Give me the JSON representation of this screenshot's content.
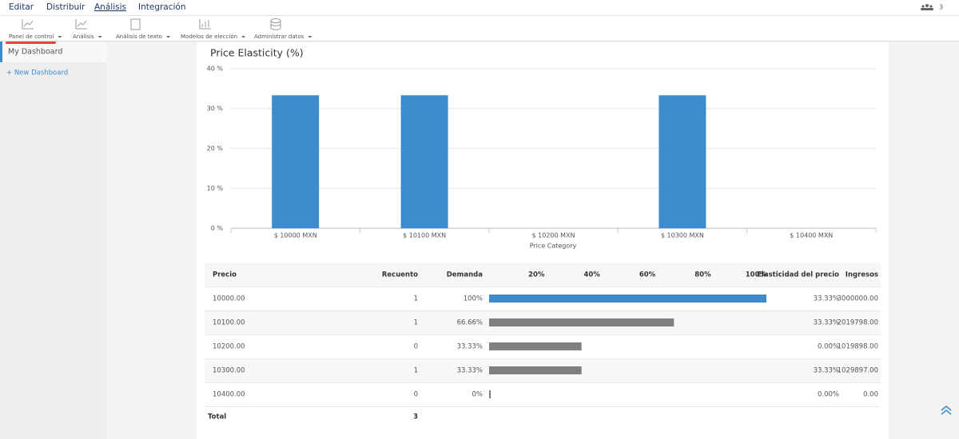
{
  "nav": {
    "items": [
      "Editar",
      "Distribuir",
      "Análisis",
      "Integración"
    ],
    "active": 2,
    "user_count": "3"
  },
  "toolbar": {
    "items": [
      "Panel de control",
      "Análisis",
      "Análisis de texto",
      "Modelos de elección",
      "Administrar datos"
    ]
  },
  "sidebar": {
    "items": [
      "My Dashboard",
      "+ New Dashboard"
    ]
  },
  "chart_data": {
    "type": "bar",
    "title": "Price Elasticity (%)",
    "categories": [
      "$ 10000 MXN",
      "$ 10100 MXN",
      "$ 10200 MXN",
      "$ 10300 MXN",
      "$ 10400 MXN"
    ],
    "values": [
      33.33,
      33.33,
      0,
      33.33,
      0
    ],
    "color": "#3d8bcd",
    "x_label": "Price Category",
    "ylim": [
      0,
      40
    ],
    "yticks": [
      {
        "value": 0,
        "label": "0 %"
      },
      {
        "value": 10,
        "label": "10 %"
      },
      {
        "value": 20,
        "label": "20 %"
      },
      {
        "value": 30,
        "label": "30 %"
      },
      {
        "value": 40,
        "label": "40 %"
      }
    ],
    "grid": true
  },
  "table": {
    "headers": [
      "Precio",
      "Recuento",
      "Demanda",
      "Elasticidad del precio",
      "Ingresos"
    ],
    "demand_xlim": [
      0,
      100
    ],
    "demand_ticks": [
      {
        "value": 20,
        "label": "20%"
      },
      {
        "value": 40,
        "label": "40%"
      },
      {
        "value": 60,
        "label": "60%"
      },
      {
        "value": 80,
        "label": "80%"
      },
      {
        "value": 100,
        "label": "100%"
      }
    ],
    "prices": [
      "10000.00",
      "10100.00",
      "10200.00",
      "10300.00",
      "10400.00"
    ],
    "counts": [
      1,
      1,
      0,
      1,
      0
    ],
    "demand": [
      100,
      66.66,
      33.33,
      33.33,
      0
    ],
    "demand_labels": [
      "100%",
      "66.66%",
      "33.33%",
      "33.33%",
      "0%"
    ],
    "bar_colors": [
      "#3d8bcd",
      "#7f7f7f",
      "#7f7f7f",
      "#7f7f7f",
      "#7f7f7f"
    ],
    "elasticity": [
      "33.33%",
      "33.33%",
      "0.00%",
      "33.33%",
      "0.00%"
    ],
    "revenue": [
      "3000000.00",
      "2019798.00",
      "1019898.00",
      "1029897.00",
      "0.00"
    ],
    "total_label": "Total",
    "total_count": 3
  }
}
